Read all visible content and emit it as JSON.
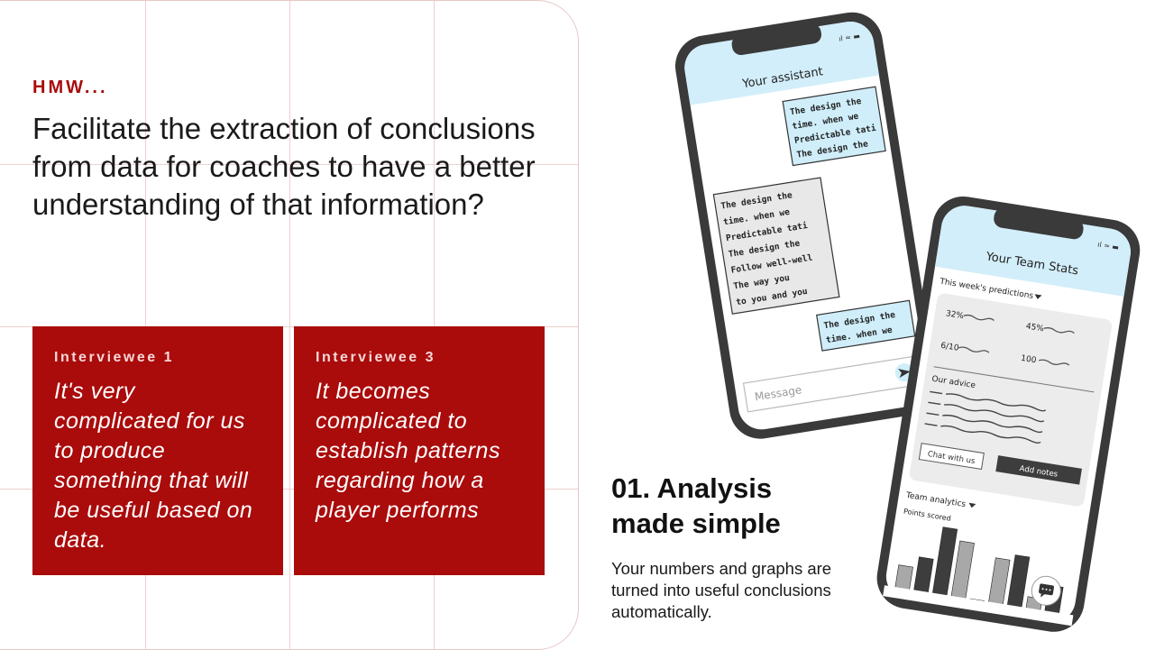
{
  "hmw": {
    "label": "HMW...",
    "question": "Facilitate the extraction of conclusions from data for coaches to have a better understanding of that information?"
  },
  "interviews": [
    {
      "who": "Interviewee 1",
      "quote": "It's very complicated for us to produce something that will be useful based on data."
    },
    {
      "who": "Interviewee 3",
      "quote": "It becomes complicated to establish patterns regarding how a player performs"
    }
  ],
  "feature": {
    "title": "01. Analysis made simple",
    "description": "Your numbers and graphs are turned into useful conclusions automatically."
  },
  "assistant_phone": {
    "title": "Your assistant",
    "bubbles": [
      {
        "lines": [
          "The design the",
          "time. when we",
          "Predictable tati",
          "The design the"
        ]
      },
      {
        "lines": [
          "The design the",
          "time. when we",
          "Predictable tati",
          "The design the",
          "Follow well-well",
          "The way you",
          "to you and you"
        ]
      },
      {
        "lines": [
          "The design the",
          "time. when we"
        ]
      }
    ],
    "message_placeholder": "Message"
  },
  "stats_phone": {
    "title": "Your Team Stats",
    "predictions_label": "This week's predictions",
    "stat_1": "32%",
    "stat_2": "45%",
    "stat_3": "6/10",
    "stat_4": "100",
    "advice_label": "Our advice",
    "chat_button": "Chat with us",
    "notes_button": "Add notes",
    "analytics_label": "Team analytics",
    "points_label": "Points scored",
    "bars": [
      {
        "value": 0.4,
        "color": "#a8a8a8"
      },
      {
        "value": 0.55,
        "color": "#3d3d3d"
      },
      {
        "value": 1.0,
        "color": "#3d3d3d"
      },
      {
        "value": 0.85,
        "color": "#a8a8a8"
      },
      {
        "value": 0.1,
        "color": "#a8a8a8"
      },
      {
        "value": 0.7,
        "color": "#a8a8a8"
      },
      {
        "value": 0.78,
        "color": "#3d3d3d"
      },
      {
        "value": 0.25,
        "color": "#a8a8a8"
      },
      {
        "value": 0.45,
        "color": "#3d3d3d"
      }
    ]
  }
}
